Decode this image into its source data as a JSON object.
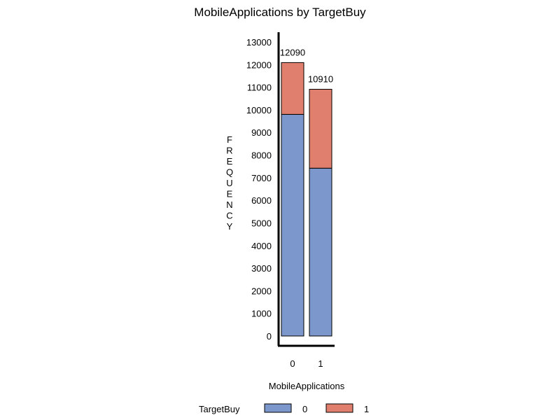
{
  "colors": {
    "series_0": "#7b97cc",
    "series_1": "#e07f6e",
    "axis": "#000000"
  },
  "chart_data": {
    "type": "bar",
    "stacked": true,
    "title": "MobileApplications by TargetBuy",
    "xlabel": "MobileApplications",
    "ylabel": "FREQUENCY",
    "categories": [
      "0",
      "1"
    ],
    "series": [
      {
        "name": "0",
        "values": [
          9800,
          7420
        ]
      },
      {
        "name": "1",
        "values": [
          2290,
          3490
        ]
      }
    ],
    "totals": [
      "12090",
      "10910"
    ],
    "ylim": [
      0,
      13000
    ],
    "yticks": [
      0,
      1000,
      2000,
      3000,
      4000,
      5000,
      6000,
      7000,
      8000,
      9000,
      10000,
      11000,
      12000,
      13000
    ],
    "grid": false,
    "legend": {
      "title": "TargetBuy",
      "position": "bottom"
    }
  }
}
